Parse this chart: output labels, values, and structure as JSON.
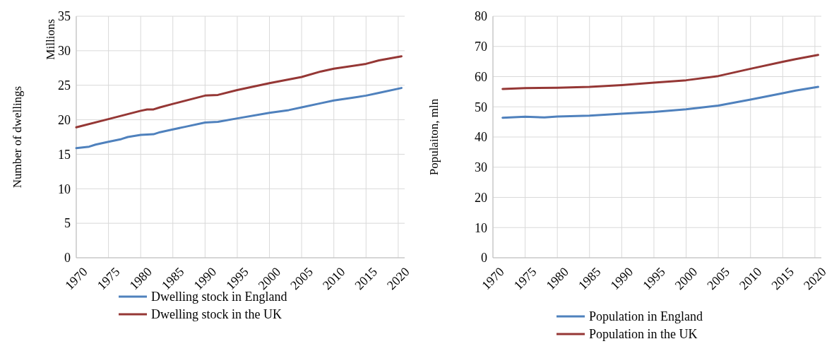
{
  "chart_data": [
    {
      "type": "line",
      "ylabel": "Number of dwellings",
      "annotations": [
        "Millions"
      ],
      "xlim": [
        1970,
        2021
      ],
      "xticks": [
        1970,
        1975,
        1980,
        1985,
        1990,
        1995,
        2000,
        2005,
        2010,
        2015,
        2020
      ],
      "ylim": [
        0,
        35
      ],
      "yticks": [
        0,
        5,
        10,
        15,
        20,
        25,
        30,
        35
      ],
      "grid": true,
      "legend": "bottom",
      "marker": "none",
      "line_style": "solid",
      "series": [
        {
          "name": "Dwelling stock in England",
          "color": "#4f81bd",
          "x": [
            1970,
            1971,
            1972,
            1973,
            1975,
            1977,
            1978,
            1980,
            1982,
            1983,
            1985,
            1987,
            1990,
            1992,
            1995,
            2000,
            2003,
            2005,
            2008,
            2010,
            2013,
            2015,
            2017,
            2020.5
          ],
          "values": [
            15.9,
            16.0,
            16.1,
            16.4,
            16.8,
            17.2,
            17.5,
            17.8,
            17.9,
            18.2,
            18.6,
            19.0,
            19.6,
            19.7,
            20.2,
            21.0,
            21.4,
            21.8,
            22.4,
            22.8,
            23.2,
            23.5,
            23.9,
            24.6
          ]
        },
        {
          "name": "Dwelling stock in the UK",
          "color": "#953735",
          "x": [
            1970,
            1975,
            1980,
            1981,
            1982,
            1983,
            1985,
            1990,
            1992,
            1995,
            2000,
            2005,
            2008,
            2010,
            2015,
            2017,
            2020.5
          ],
          "values": [
            18.9,
            20.1,
            21.3,
            21.5,
            21.5,
            21.8,
            22.3,
            23.5,
            23.6,
            24.3,
            25.3,
            26.2,
            27.0,
            27.4,
            28.1,
            28.6,
            29.2
          ]
        }
      ]
    },
    {
      "type": "line",
      "ylabel": "Populaiton, mln",
      "xlim": [
        1970,
        2021
      ],
      "xticks": [
        1970,
        1975,
        1980,
        1985,
        1990,
        1995,
        2000,
        2005,
        2010,
        2015,
        2020
      ],
      "ylim": [
        0,
        80
      ],
      "yticks": [
        0,
        10,
        20,
        30,
        40,
        50,
        60,
        70,
        80
      ],
      "grid": true,
      "legend": "bottom",
      "marker": "none",
      "line_style": "solid",
      "series": [
        {
          "name": "Population in England",
          "color": "#4f81bd",
          "x": [
            1971.5,
            1975,
            1978,
            1980,
            1985,
            1990,
            1995,
            2000,
            2005,
            2010,
            2015,
            2017,
            2020.5
          ],
          "values": [
            46.4,
            46.7,
            46.5,
            46.8,
            47.1,
            47.7,
            48.3,
            49.2,
            50.4,
            52.4,
            54.5,
            55.4,
            56.6
          ]
        },
        {
          "name": "Population in the UK",
          "color": "#953735",
          "x": [
            1971.5,
            1975,
            1980,
            1985,
            1990,
            1995,
            2000,
            2005,
            2010,
            2015,
            2017,
            2020.5
          ],
          "values": [
            55.9,
            56.2,
            56.3,
            56.6,
            57.2,
            58.0,
            58.8,
            60.2,
            62.6,
            64.9,
            65.8,
            67.2
          ]
        }
      ]
    }
  ]
}
